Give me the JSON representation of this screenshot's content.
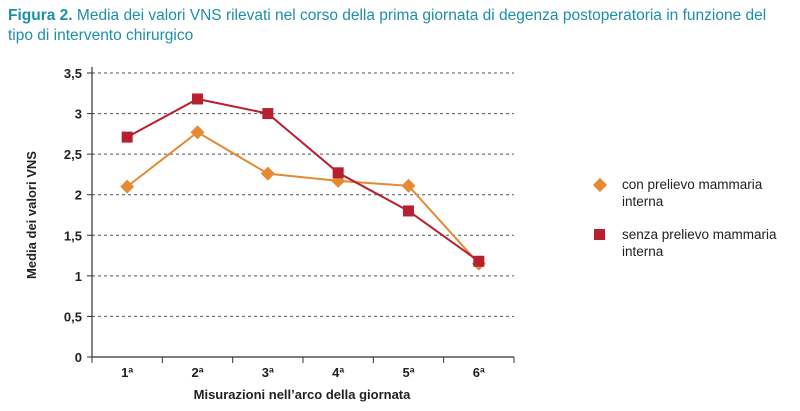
{
  "caption": {
    "label": "Figura 2.",
    "text": " Media dei valori VNS rilevati nel corso della prima giornata di degenza postoperatoria in funzione del tipo di intervento chirurgico"
  },
  "chart_data": {
    "type": "line",
    "categories": [
      "1ª",
      "2ª",
      "3ª",
      "4ª",
      "5ª",
      "6ª"
    ],
    "xlabel": "Misurazioni nell’arco della giornata",
    "ylabel": "Media dei valori VNS",
    "ylim": [
      0,
      3.5
    ],
    "yticks": [
      0,
      0.5,
      1,
      1.5,
      2,
      2.5,
      3,
      3.5
    ],
    "ytick_labels": [
      "0",
      "0,5",
      "1",
      "1,5",
      "2",
      "2,5",
      "3",
      "3,5"
    ],
    "grid": "horizontal dashed",
    "legend_position": "right",
    "series": [
      {
        "name": "con prelievo mammaria interna",
        "marker": "diamond",
        "color": "#e48a32",
        "values": [
          2.1,
          2.77,
          2.26,
          2.17,
          2.11,
          1.15
        ]
      },
      {
        "name": "senza prelievo mammaria interna",
        "marker": "square",
        "color": "#b7202e",
        "values": [
          2.71,
          3.18,
          3.0,
          2.27,
          1.8,
          1.18
        ]
      }
    ]
  }
}
